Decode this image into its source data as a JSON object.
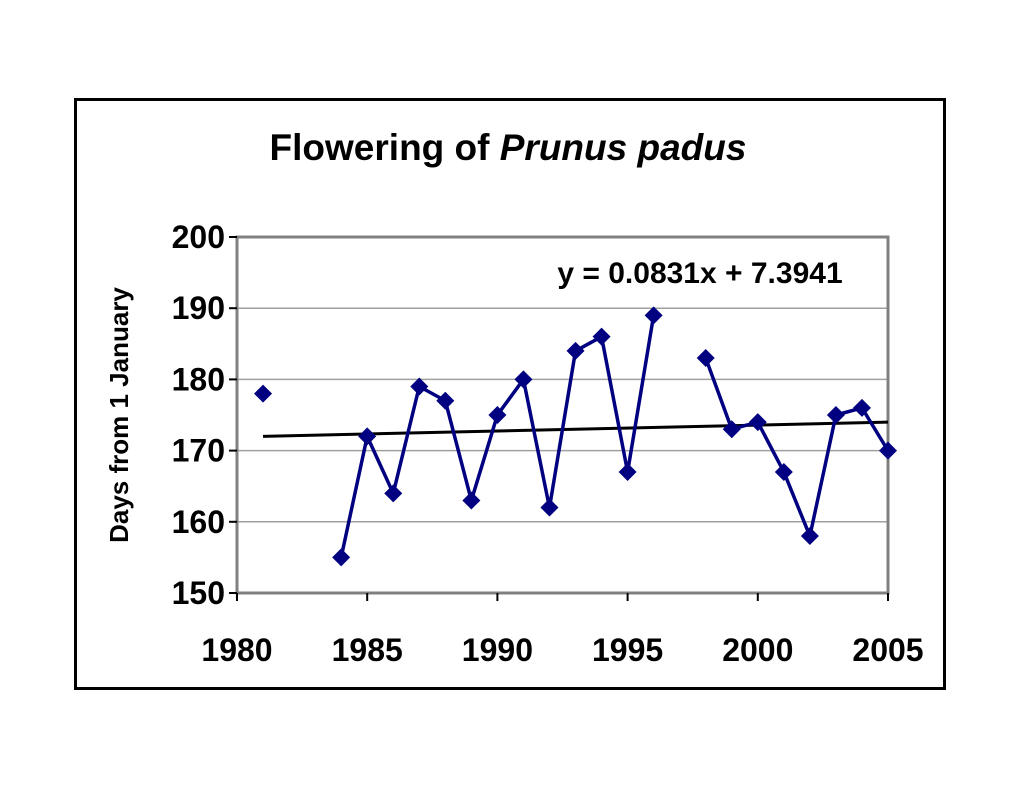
{
  "chart_data": {
    "type": "line",
    "title": "Flowering of ",
    "title_italic": "Prunus padus",
    "xlabel": "",
    "ylabel": "Days from 1 January",
    "xlim": [
      1980,
      2005
    ],
    "ylim": [
      150,
      200
    ],
    "x_ticks": [
      "1980",
      "1985",
      "1990",
      "1995",
      "2000",
      "2005"
    ],
    "y_ticks": [
      "150",
      "160",
      "170",
      "180",
      "190",
      "200"
    ],
    "grid": "horizontal",
    "series": [
      {
        "color": "#000080",
        "marker": "diamond",
        "segments": [
          [
            {
              "x": 1981,
              "y": 178
            }
          ],
          [
            {
              "x": 1984,
              "y": 155
            },
            {
              "x": 1985,
              "y": 172
            },
            {
              "x": 1986,
              "y": 164
            },
            {
              "x": 1987,
              "y": 179
            },
            {
              "x": 1988,
              "y": 177
            },
            {
              "x": 1989,
              "y": 163
            },
            {
              "x": 1990,
              "y": 175
            },
            {
              "x": 1991,
              "y": 180
            },
            {
              "x": 1992,
              "y": 162
            },
            {
              "x": 1993,
              "y": 184
            },
            {
              "x": 1994,
              "y": 186
            },
            {
              "x": 1995,
              "y": 167
            },
            {
              "x": 1996,
              "y": 189
            }
          ],
          [
            {
              "x": 1998,
              "y": 183
            },
            {
              "x": 1999,
              "y": 173
            },
            {
              "x": 2000,
              "y": 174
            },
            {
              "x": 2001,
              "y": 167
            },
            {
              "x": 2002,
              "y": 158
            },
            {
              "x": 2003,
              "y": 175
            },
            {
              "x": 2004,
              "y": 176
            },
            {
              "x": 2005,
              "y": 170
            }
          ]
        ]
      }
    ],
    "trendline": {
      "equation": "y = 0.0831x + 7.3941",
      "color": "#000000",
      "x": [
        1981,
        2005
      ],
      "y": [
        172,
        174
      ]
    }
  }
}
